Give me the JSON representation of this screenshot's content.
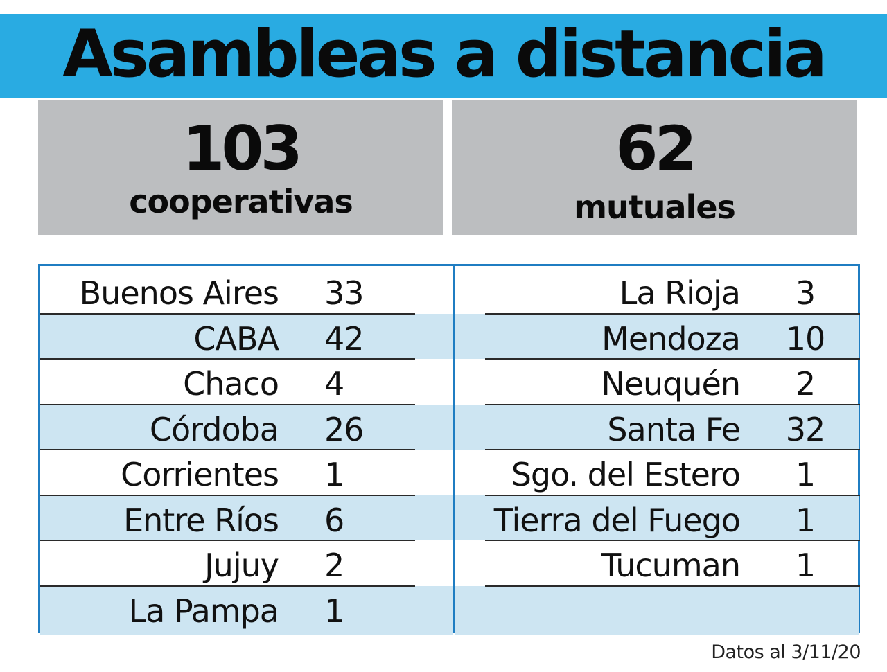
{
  "title": "Asambleas a distancia",
  "stats": {
    "cooperativas": {
      "number": "103",
      "label": "cooperativas"
    },
    "mutuales": {
      "number": "62",
      "label": "mutuales"
    }
  },
  "table": {
    "left": [
      {
        "name": "Buenos Aires",
        "value": "33"
      },
      {
        "name": "CABA",
        "value": "42"
      },
      {
        "name": "Chaco",
        "value": "4"
      },
      {
        "name": "Córdoba",
        "value": "26"
      },
      {
        "name": "Corrientes",
        "value": "1"
      },
      {
        "name": "Entre Ríos",
        "value": "6"
      },
      {
        "name": "Jujuy",
        "value": "2"
      },
      {
        "name": "La Pampa",
        "value": "1"
      }
    ],
    "right": [
      {
        "name": "La Rioja",
        "value": "3"
      },
      {
        "name": "Mendoza",
        "value": "10"
      },
      {
        "name": "Neuquén",
        "value": "2"
      },
      {
        "name": "Santa Fe",
        "value": "32"
      },
      {
        "name": "Sgo. del Estero",
        "value": "1"
      },
      {
        "name": "Tierra del Fuego",
        "value": "1"
      },
      {
        "name": "Tucuman",
        "value": "1"
      }
    ]
  },
  "footnote": "Datos al 3/11/20",
  "colors": {
    "banner": "#29abe2",
    "stat_box": "#bcbec0",
    "row_shade": "#cde5f2",
    "table_border": "#1f7dc2"
  }
}
